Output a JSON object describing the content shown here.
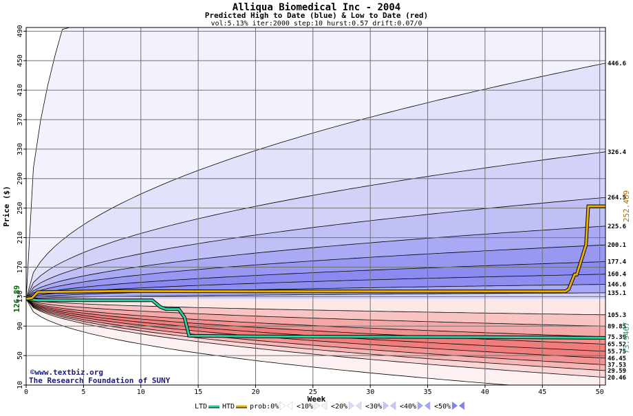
{
  "chart_data": {
    "type": "area",
    "title": "Alliqua Biomedical Inc - 2004",
    "subtitle": "Predicted High to Date (blue) &  Low to Date (red)",
    "params": "vol:5.13% iter:2000 step:10 hurst:0.57 drift:0.07/0",
    "xlabel": "Week",
    "ylabel": "Price ($)",
    "xlim": [
      0,
      50.5
    ],
    "ylim": [
      10,
      495
    ],
    "x_ticks": [
      0,
      5,
      10,
      15,
      20,
      25,
      30,
      35,
      40,
      45,
      50
    ],
    "y_ticks": [
      10,
      50,
      90,
      130,
      170,
      210,
      250,
      290,
      330,
      370,
      410,
      450,
      490
    ],
    "grid": true,
    "start_price": 126.89,
    "start_price_label": "126.89",
    "htd_end_label": "252.469",
    "ltd_end_label": "73.9467",
    "upper_band_labels": [
      "446.6",
      "326.4",
      "264.5",
      "225.6",
      "200.1",
      "177.4",
      "160.4",
      "146.6",
      "135.1"
    ],
    "upper_band_values": [
      446.6,
      326.4,
      264.5,
      225.6,
      200.1,
      177.4,
      160.4,
      146.6,
      135.1
    ],
    "lower_band_labels": [
      "105.3",
      "89.85",
      "75.39",
      "65.52",
      "55.75",
      "46.45",
      "37.53",
      "29.59",
      "20.46"
    ],
    "lower_band_values": [
      105.3,
      89.85,
      75.39,
      65.52,
      55.75,
      46.45,
      37.53,
      29.59,
      20.46
    ],
    "htd_series": {
      "x": [
        0,
        0.5,
        1,
        8,
        20,
        47,
        47.3,
        47.8,
        48,
        48.4,
        48.8,
        49,
        50.5
      ],
      "y": [
        127,
        128,
        136,
        137.5,
        137,
        137,
        140,
        160,
        160,
        180,
        200,
        252.5,
        252.5
      ]
    },
    "ltd_series": {
      "x": [
        0,
        1,
        11,
        11.7,
        12.2,
        13.3,
        13.8,
        14.2,
        20,
        30,
        40,
        50.5
      ],
      "y": [
        126.9,
        125,
        125,
        116,
        113,
        113,
        102,
        77,
        76,
        75.5,
        75,
        74
      ]
    },
    "legend": [
      {
        "label": "LTD",
        "color": "#30d0a0"
      },
      {
        "label": "HTD",
        "color": "#e8b000"
      },
      {
        "label": "prob:0%",
        "color": "#ffffff"
      },
      {
        "label": "<10%",
        "color": "#f2f2fd"
      },
      {
        "label": "<20%",
        "color": "#dcdcf8"
      },
      {
        "label": "<30%",
        "color": "#c4c4f8"
      },
      {
        "label": "<40%",
        "color": "#a4a4f4"
      },
      {
        "label": "<50%",
        "color": "#8080ee"
      }
    ],
    "watermark_line1": "©www.textbiz.org",
    "watermark_line2": "The Research Foundation of SUNY"
  }
}
